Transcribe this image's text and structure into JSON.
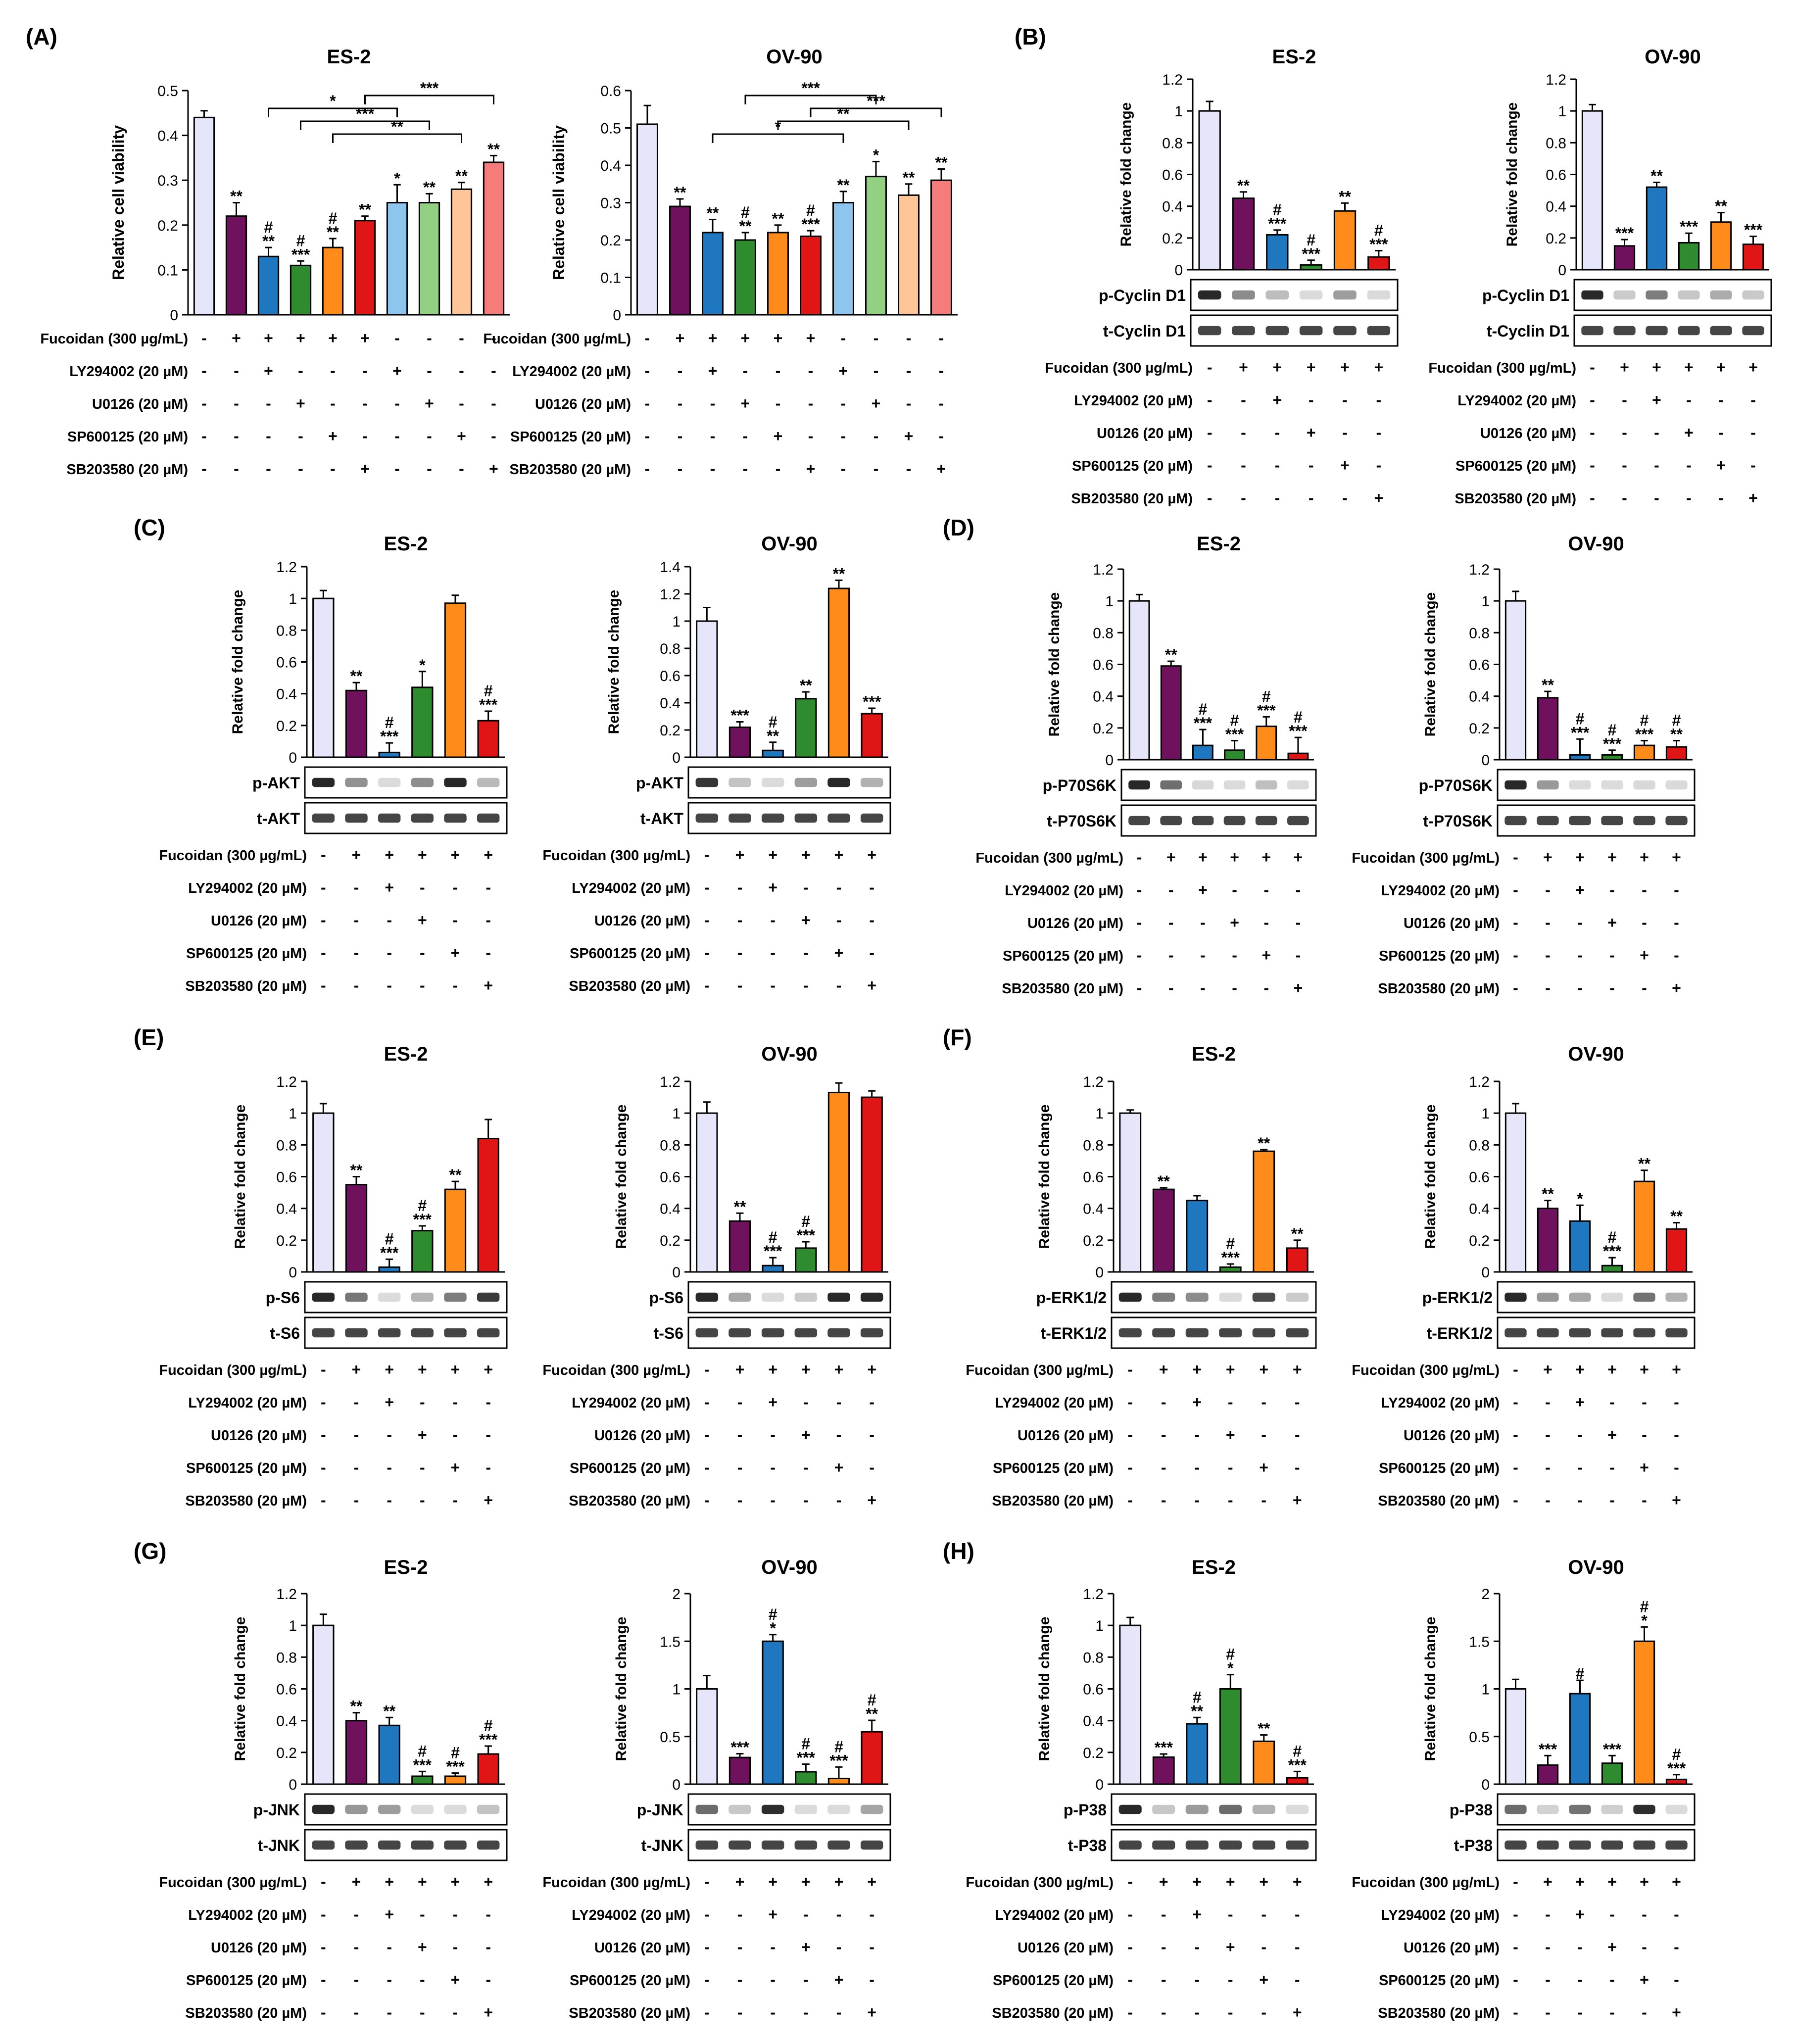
{
  "palette": [
    "#E6E6FA",
    "#70115E",
    "#1F77C0",
    "#2E8B2E",
    "#FF8C1A",
    "#E01515",
    "#8EC5EF",
    "#92D082",
    "#FFC597",
    "#F67B7B"
  ],
  "y_label": "Relative fold change",
  "treatments": [
    "Fucoidan (300 µg/mL)",
    "LY294002 (20 µM)",
    "U0126 (20 µM)",
    "SP600125 (20 µM)",
    "SB203580 (20 µM)"
  ],
  "design6": [
    [
      "-",
      "+",
      "+",
      "+",
      "+",
      "+"
    ],
    [
      "-",
      "-",
      "+",
      "-",
      "-",
      "-"
    ],
    [
      "-",
      "-",
      "-",
      "+",
      "-",
      "-"
    ],
    [
      "-",
      "-",
      "-",
      "-",
      "+",
      "-"
    ],
    [
      "-",
      "-",
      "-",
      "-",
      "-",
      "+"
    ]
  ],
  "design10": [
    [
      "-",
      "+",
      "+",
      "+",
      "+",
      "+",
      "-",
      "-",
      "-",
      "-"
    ],
    [
      "-",
      "-",
      "+",
      "-",
      "-",
      "-",
      "+",
      "-",
      "-",
      "-"
    ],
    [
      "-",
      "-",
      "-",
      "+",
      "-",
      "-",
      "-",
      "+",
      "-",
      "-"
    ],
    [
      "-",
      "-",
      "-",
      "-",
      "+",
      "-",
      "-",
      "-",
      "+",
      "-"
    ],
    [
      "-",
      "-",
      "-",
      "-",
      "-",
      "+",
      "-",
      "-",
      "-",
      "+"
    ]
  ],
  "chart_data": [
    {
      "type": "bar",
      "panel": "(A)",
      "title": "ES-2",
      "ylabel": "Relative cell viability",
      "ylim": [
        0,
        0.5
      ],
      "yticks": [
        "0",
        "0.1",
        "0.2",
        "0.3",
        "0.4",
        "0.5"
      ],
      "values": [
        0.44,
        0.22,
        0.13,
        0.11,
        0.15,
        0.21,
        0.25,
        0.25,
        0.28,
        0.34
      ],
      "errors": [
        0.015,
        0.03,
        0.02,
        0.01,
        0.02,
        0.01,
        0.04,
        0.02,
        0.015,
        0.015
      ],
      "annotations": [
        "",
        "**",
        "#\n**",
        "#\n***",
        "#\n**",
        "**",
        "*",
        "**",
        "**",
        "**"
      ],
      "brackets": [
        {
          "from": 2,
          "to": 6,
          "label": "*",
          "level": 4
        },
        {
          "from": 3,
          "to": 7,
          "label": "***",
          "level": 3
        },
        {
          "from": 4,
          "to": 8,
          "label": "**",
          "level": 2
        },
        {
          "from": 5,
          "to": 9,
          "label": "***",
          "level": 5
        }
      ]
    },
    {
      "type": "bar",
      "panel": "",
      "title": "OV-90",
      "ylabel": "Relative cell viability",
      "ylim": [
        0,
        0.6
      ],
      "yticks": [
        "0",
        "0.1",
        "0.2",
        "0.3",
        "0.4",
        "0.5",
        "0.6"
      ],
      "values": [
        0.51,
        0.29,
        0.22,
        0.2,
        0.22,
        0.21,
        0.3,
        0.37,
        0.32,
        0.36
      ],
      "errors": [
        0.05,
        0.02,
        0.035,
        0.02,
        0.02,
        0.015,
        0.03,
        0.04,
        0.03,
        0.03
      ],
      "annotations": [
        "",
        "**",
        "**",
        "#\n**",
        "**",
        "#\n***",
        "**",
        "*",
        "**",
        "**"
      ],
      "brackets": [
        {
          "from": 2,
          "to": 6,
          "label": "*",
          "level": 2
        },
        {
          "from": 3,
          "to": 7,
          "label": "***",
          "level": 5
        },
        {
          "from": 4,
          "to": 8,
          "label": "**",
          "level": 3
        },
        {
          "from": 5,
          "to": 9,
          "label": "***",
          "level": 4
        }
      ]
    },
    {
      "type": "bar",
      "panel": "(B)",
      "title": "ES-2",
      "ylim": [
        0,
        1.2
      ],
      "yticks": [
        "0",
        "0.2",
        "0.4",
        "0.6",
        "0.8",
        "1",
        "1.2"
      ],
      "values": [
        1.0,
        0.45,
        0.22,
        0.03,
        0.37,
        0.08
      ],
      "errors": [
        0.06,
        0.04,
        0.03,
        0.03,
        0.05,
        0.04
      ],
      "annotations": [
        "",
        "**",
        "#\n***",
        "#\n***",
        "**",
        "#\n***"
      ],
      "blots": [
        "p-Cyclin D1",
        "t-Cyclin D1"
      ]
    },
    {
      "type": "bar",
      "panel": "",
      "title": "OV-90",
      "ylim": [
        0,
        1.2
      ],
      "yticks": [
        "0",
        "0.2",
        "0.4",
        "0.6",
        "0.8",
        "1",
        "1.2"
      ],
      "values": [
        1.0,
        0.15,
        0.52,
        0.17,
        0.3,
        0.16
      ],
      "errors": [
        0.04,
        0.04,
        0.03,
        0.06,
        0.06,
        0.05
      ],
      "annotations": [
        "",
        "***",
        "**",
        "***",
        "**",
        "***"
      ],
      "blots": [
        "p-Cyclin D1",
        "t-Cyclin D1"
      ]
    },
    {
      "type": "bar",
      "panel": "(C)",
      "title": "ES-2",
      "ylim": [
        0,
        1.2
      ],
      "yticks": [
        "0",
        "0.2",
        "0.4",
        "0.6",
        "0.8",
        "1",
        "1.2"
      ],
      "values": [
        1.0,
        0.42,
        0.03,
        0.44,
        0.97,
        0.23
      ],
      "errors": [
        0.05,
        0.05,
        0.06,
        0.1,
        0.05,
        0.06
      ],
      "annotations": [
        "",
        "**",
        "#\n***",
        "*",
        "",
        "#\n***"
      ],
      "blots": [
        "p-AKT",
        "t-AKT"
      ]
    },
    {
      "type": "bar",
      "panel": "",
      "title": "OV-90",
      "ylim": [
        0,
        1.4
      ],
      "yticks": [
        "0",
        "0.2",
        "0.4",
        "0.6",
        "0.8",
        "1",
        "1.2",
        "1.4"
      ],
      "values": [
        1.0,
        0.22,
        0.05,
        0.43,
        1.24,
        0.32
      ],
      "errors": [
        0.1,
        0.04,
        0.06,
        0.05,
        0.06,
        0.04
      ],
      "annotations": [
        "",
        "***",
        "#\n**",
        "**",
        "**",
        "***"
      ],
      "blots": [
        "p-AKT",
        "t-AKT"
      ]
    },
    {
      "type": "bar",
      "panel": "(D)",
      "title": "ES-2",
      "ylim": [
        0,
        1.2
      ],
      "yticks": [
        "0",
        "0.2",
        "0.4",
        "0.6",
        "0.8",
        "1",
        "1.2"
      ],
      "values": [
        1.0,
        0.59,
        0.09,
        0.06,
        0.21,
        0.04
      ],
      "errors": [
        0.04,
        0.03,
        0.1,
        0.06,
        0.06,
        0.1
      ],
      "annotations": [
        "",
        "**",
        "#\n***",
        "#\n***",
        "#\n***",
        "#\n***"
      ],
      "blots": [
        "p-P70S6K",
        "t-P70S6K"
      ]
    },
    {
      "type": "bar",
      "panel": "",
      "title": "OV-90",
      "ylim": [
        0,
        1.2
      ],
      "yticks": [
        "0",
        "0.2",
        "0.4",
        "0.6",
        "0.8",
        "1",
        "1.2"
      ],
      "values": [
        1.0,
        0.39,
        0.03,
        0.03,
        0.09,
        0.08
      ],
      "errors": [
        0.06,
        0.04,
        0.1,
        0.03,
        0.03,
        0.04
      ],
      "annotations": [
        "",
        "**",
        "#\n***",
        "#\n***",
        "#\n***",
        "#\n**"
      ],
      "blots": [
        "p-P70S6K",
        "t-P70S6K"
      ]
    },
    {
      "type": "bar",
      "panel": "(E)",
      "title": "ES-2",
      "ylim": [
        0,
        1.2
      ],
      "yticks": [
        "0",
        "0.2",
        "0.4",
        "0.6",
        "0.8",
        "1",
        "1.2"
      ],
      "values": [
        1.0,
        0.55,
        0.03,
        0.26,
        0.52,
        0.84
      ],
      "errors": [
        0.06,
        0.05,
        0.05,
        0.03,
        0.05,
        0.12
      ],
      "annotations": [
        "",
        "**",
        "#\n***",
        "#\n***",
        "**",
        ""
      ],
      "blots": [
        "p-S6",
        "t-S6"
      ]
    },
    {
      "type": "bar",
      "panel": "",
      "title": "OV-90",
      "ylim": [
        0,
        1.2
      ],
      "yticks": [
        "0",
        "0.2",
        "0.4",
        "0.6",
        "0.8",
        "1",
        "1.2"
      ],
      "values": [
        1.0,
        0.32,
        0.04,
        0.15,
        1.13,
        1.1
      ],
      "errors": [
        0.07,
        0.05,
        0.05,
        0.04,
        0.06,
        0.04
      ],
      "annotations": [
        "",
        "**",
        "#\n***",
        "#\n***",
        "",
        ""
      ],
      "blots": [
        "p-S6",
        "t-S6"
      ]
    },
    {
      "type": "bar",
      "panel": "(F)",
      "title": "ES-2",
      "ylim": [
        0,
        1.2
      ],
      "yticks": [
        "0",
        "0.2",
        "0.4",
        "0.6",
        "0.8",
        "1",
        "1.2"
      ],
      "values": [
        1.0,
        0.52,
        0.45,
        0.03,
        0.76,
        0.15
      ],
      "errors": [
        0.02,
        0.01,
        0.03,
        0.02,
        0.01,
        0.05
      ],
      "annotations": [
        "",
        "**",
        "",
        "#\n***",
        "**",
        "**"
      ],
      "blots": [
        "p-ERK1/2",
        "t-ERK1/2"
      ]
    },
    {
      "type": "bar",
      "panel": "",
      "title": "OV-90",
      "ylim": [
        0,
        1.2
      ],
      "yticks": [
        "0",
        "0.2",
        "0.4",
        "0.6",
        "0.8",
        "1",
        "1.2"
      ],
      "values": [
        1.0,
        0.4,
        0.32,
        0.04,
        0.57,
        0.27
      ],
      "errors": [
        0.06,
        0.05,
        0.1,
        0.05,
        0.07,
        0.04
      ],
      "annotations": [
        "",
        "**",
        "*",
        "#\n***",
        "**",
        "**"
      ],
      "blots": [
        "p-ERK1/2",
        "t-ERK1/2"
      ]
    },
    {
      "type": "bar",
      "panel": "(G)",
      "title": "ES-2",
      "ylim": [
        0,
        1.2
      ],
      "yticks": [
        "0",
        "0.2",
        "0.4",
        "0.6",
        "0.8",
        "1",
        "1.2"
      ],
      "values": [
        1.0,
        0.4,
        0.37,
        0.05,
        0.05,
        0.19
      ],
      "errors": [
        0.07,
        0.05,
        0.05,
        0.03,
        0.02,
        0.05
      ],
      "annotations": [
        "",
        "**",
        "**",
        "#\n***",
        "#\n***",
        "#\n***"
      ],
      "blots": [
        "p-JNK",
        "t-JNK"
      ]
    },
    {
      "type": "bar",
      "panel": "",
      "title": "OV-90",
      "ylim": [
        0,
        2
      ],
      "yticks": [
        "0",
        "0.5",
        "1",
        "1.5",
        "2"
      ],
      "values": [
        1.0,
        0.28,
        1.5,
        0.13,
        0.06,
        0.55
      ],
      "errors": [
        0.14,
        0.04,
        0.07,
        0.08,
        0.12,
        0.12
      ],
      "annotations": [
        "",
        "***",
        "#\n*",
        "#\n***",
        "#\n***",
        "#\n**"
      ],
      "blots": [
        "p-JNK",
        "t-JNK"
      ]
    },
    {
      "type": "bar",
      "panel": "(H)",
      "title": "ES-2",
      "ylim": [
        0,
        1.2
      ],
      "yticks": [
        "0",
        "0.2",
        "0.4",
        "0.6",
        "0.8",
        "1",
        "1.2"
      ],
      "values": [
        1.0,
        0.17,
        0.38,
        0.6,
        0.27,
        0.04
      ],
      "errors": [
        0.05,
        0.02,
        0.04,
        0.09,
        0.04,
        0.04
      ],
      "annotations": [
        "",
        "***",
        "#\n**",
        "#\n*",
        "**",
        "#\n***"
      ],
      "blots": [
        "p-P38",
        "t-P38"
      ]
    },
    {
      "type": "bar",
      "panel": "",
      "title": "OV-90",
      "ylim": [
        0,
        2
      ],
      "yticks": [
        "0",
        "0.5",
        "1",
        "1.5",
        "2"
      ],
      "values": [
        1.0,
        0.2,
        0.95,
        0.22,
        1.5,
        0.05
      ],
      "errors": [
        0.1,
        0.1,
        0.14,
        0.08,
        0.15,
        0.05
      ],
      "annotations": [
        "",
        "***",
        "#",
        "***",
        "#\n*",
        "#\n***"
      ],
      "blots": [
        "p-P38",
        "t-P38"
      ]
    }
  ]
}
